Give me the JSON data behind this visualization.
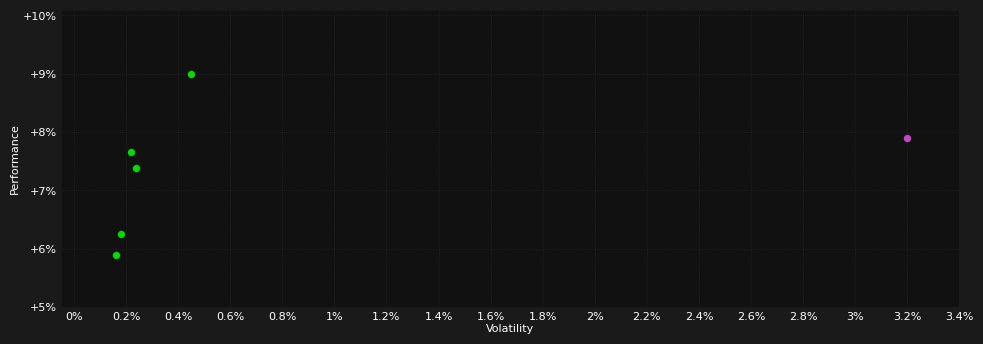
{
  "background_color": "#1a1a1a",
  "plot_bg_color": "#111111",
  "text_color": "#ffffff",
  "xlabel": "Volatility",
  "ylabel": "Performance",
  "xlim": [
    -0.0005,
    0.034
  ],
  "ylim": [
    0.05,
    0.101
  ],
  "xtick_values": [
    0.0,
    0.002,
    0.004,
    0.006,
    0.008,
    0.01,
    0.012,
    0.014,
    0.016,
    0.018,
    0.02,
    0.022,
    0.024,
    0.026,
    0.028,
    0.03,
    0.032,
    0.034
  ],
  "xtick_labels": [
    "0%",
    "0.2%",
    "0.4%",
    "0.6%",
    "0.8%",
    "1%",
    "1.2%",
    "1.4%",
    "1.6%",
    "1.8%",
    "2%",
    "2.2%",
    "2.4%",
    "2.6%",
    "2.8%",
    "3%",
    "3.2%",
    "3.4%"
  ],
  "ytick_values": [
    0.05,
    0.06,
    0.07,
    0.08,
    0.09,
    0.1
  ],
  "ytick_labels": [
    "+5%",
    "+6%",
    "+7%",
    "+8%",
    "+9%",
    "+10%"
  ],
  "green_points": [
    [
      0.0045,
      0.09
    ],
    [
      0.0022,
      0.0765
    ],
    [
      0.0024,
      0.0738
    ],
    [
      0.0018,
      0.0625
    ],
    [
      0.0016,
      0.059
    ]
  ],
  "magenta_points": [
    [
      0.032,
      0.079
    ]
  ],
  "green_color": "#00dd00",
  "magenta_color": "#cc44cc",
  "marker_size": 28,
  "axis_fontsize": 8,
  "tick_fontsize": 8,
  "grid_color": "#2a2a2a",
  "grid_linestyle": ":",
  "grid_linewidth": 0.5
}
